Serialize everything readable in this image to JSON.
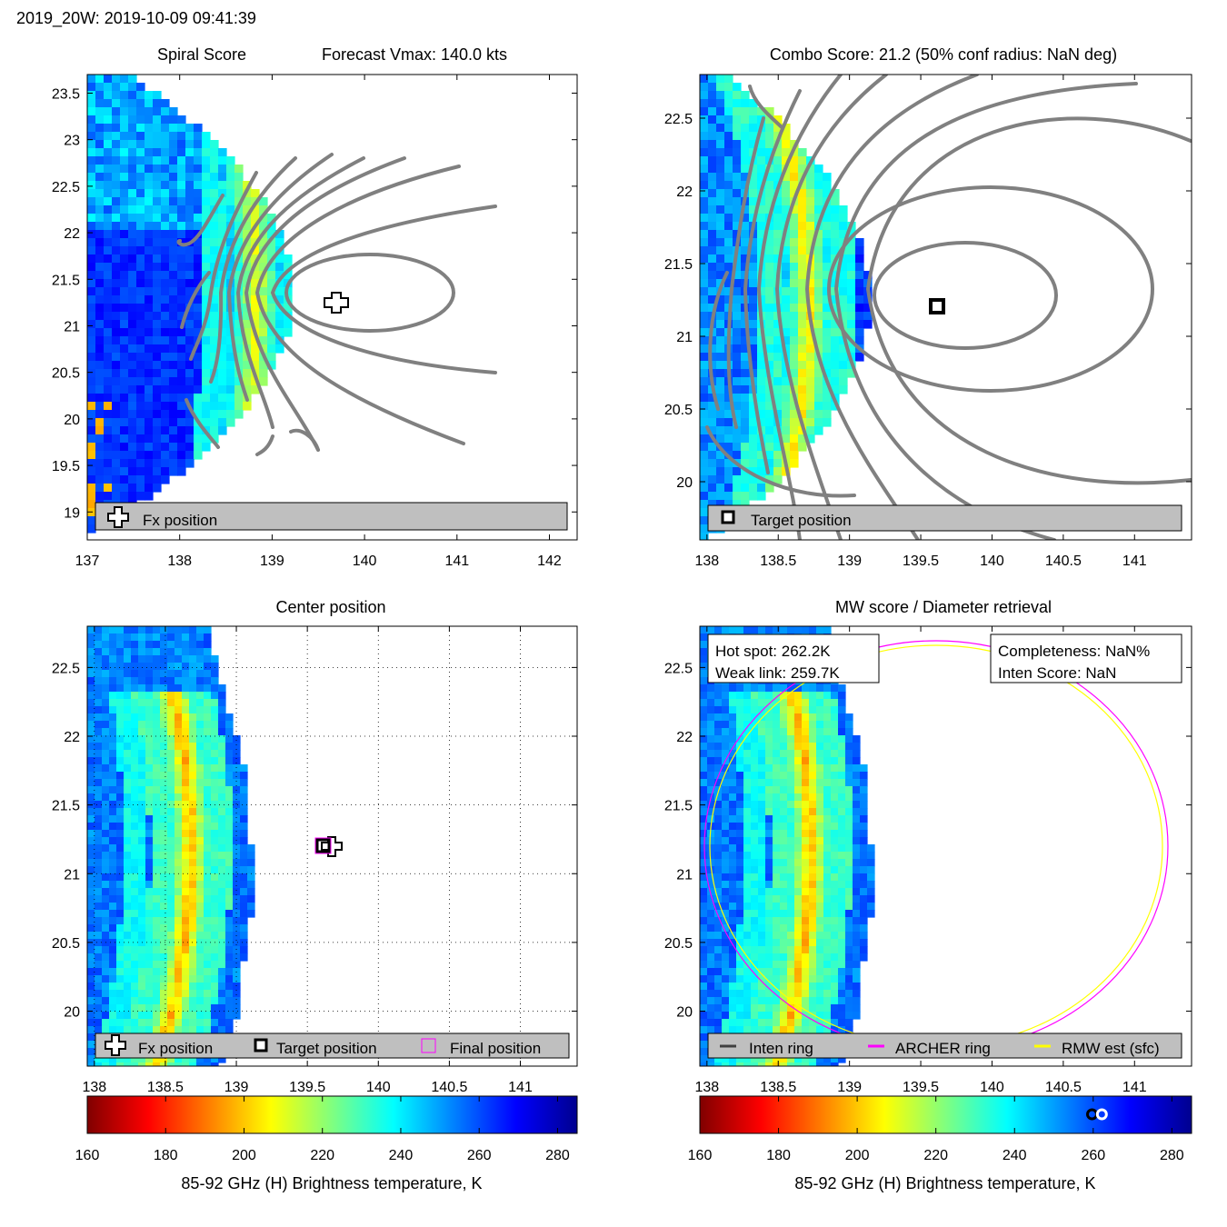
{
  "header": {
    "title": "2019_20W: 2019-10-09 09:41:39"
  },
  "colors": {
    "contour": "#808080",
    "archer": "#ff00ff",
    "rmw": "#ffff00",
    "legend_bg": "#bfbfbf"
  },
  "panels": {
    "spiral": {
      "title": "Spiral Score",
      "subtitle": "Forecast Vmax: 140.0 kts",
      "legend": {
        "fx_label": "Fx position",
        "fx_icon": "plus-icon"
      }
    },
    "combo": {
      "title": "Combo Score: 21.2  (50% conf radius: NaN deg)",
      "legend": {
        "target_label": "Target position",
        "target_icon": "square-icon"
      }
    },
    "center": {
      "title": "Center position",
      "legend": {
        "fx_label": "Fx position",
        "target_label": "Target position",
        "final_label": "Final position"
      }
    },
    "mw": {
      "title": "MW score / Diameter retrieval",
      "hot_spot": "Hot spot: 262.2K",
      "weak_link": "Weak link: 259.7K",
      "completeness": "Completeness: NaN%",
      "inten_score": "Inten Score: NaN",
      "legend": {
        "inten_label": "Inten ring",
        "archer_label": "ARCHER ring",
        "rmw_label": "RMW est (sfc)"
      }
    }
  },
  "colorbar": {
    "label": "85-92 GHz (H) Brightness temperature, K",
    "range": [
      160,
      285
    ],
    "ticks": [
      "160",
      "180",
      "200",
      "220",
      "240",
      "260",
      "280"
    ],
    "hot_spot_K": 262.2,
    "weak_link_K": 259.7
  },
  "chart_data": [
    {
      "type": "heatmap",
      "name": "Spiral Score",
      "xlim": [
        137,
        142.3
      ],
      "ylim": [
        18.7,
        23.7
      ],
      "xticks": [
        "137",
        "138",
        "139",
        "140",
        "141",
        "142"
      ],
      "yticks": [
        "19",
        "19.5",
        "20",
        "20.5",
        "21",
        "21.5",
        "22",
        "22.5",
        "23",
        "23.5"
      ],
      "fx_position": [
        139.65,
        21.2
      ],
      "contours": "gray spiral-score contours"
    },
    {
      "type": "heatmap",
      "name": "Combo Score",
      "score": 21.2,
      "xlim": [
        137.95,
        141.4
      ],
      "ylim": [
        19.6,
        22.8
      ],
      "xticks": [
        "138",
        "138.5",
        "139",
        "139.5",
        "140",
        "140.5",
        "141"
      ],
      "yticks": [
        "20",
        "20.5",
        "21",
        "21.5",
        "22",
        "22.5"
      ],
      "target_position": [
        139.6,
        21.2
      ]
    },
    {
      "type": "heatmap",
      "name": "Center position",
      "xlim": [
        137.95,
        141.4
      ],
      "ylim": [
        19.6,
        22.8
      ],
      "xticks": [
        "138",
        "138.5",
        "139",
        "139.5",
        "140",
        "140.5",
        "141"
      ],
      "yticks": [
        "20",
        "20.5",
        "21",
        "21.5",
        "22",
        "22.5"
      ],
      "grid": true,
      "fx_position": [
        139.65,
        21.2
      ],
      "target_position": [
        139.6,
        21.2
      ],
      "final_position": [
        139.6,
        21.2
      ]
    },
    {
      "type": "heatmap",
      "name": "MW score / Diameter retrieval",
      "xlim": [
        137.95,
        141.4
      ],
      "ylim": [
        19.6,
        22.8
      ],
      "xticks": [
        "138",
        "138.5",
        "139",
        "139.5",
        "140",
        "140.5",
        "141"
      ],
      "yticks": [
        "20",
        "20.5",
        "21",
        "21.5",
        "22",
        "22.5"
      ],
      "archer_ring": {
        "center": [
          139.6,
          21.2
        ],
        "rx_deg": 1.6,
        "ry_deg": 1.45
      },
      "rmw_ring": {
        "center": [
          139.6,
          21.2
        ],
        "rx_deg": 1.56,
        "ry_deg": 1.41
      }
    }
  ]
}
